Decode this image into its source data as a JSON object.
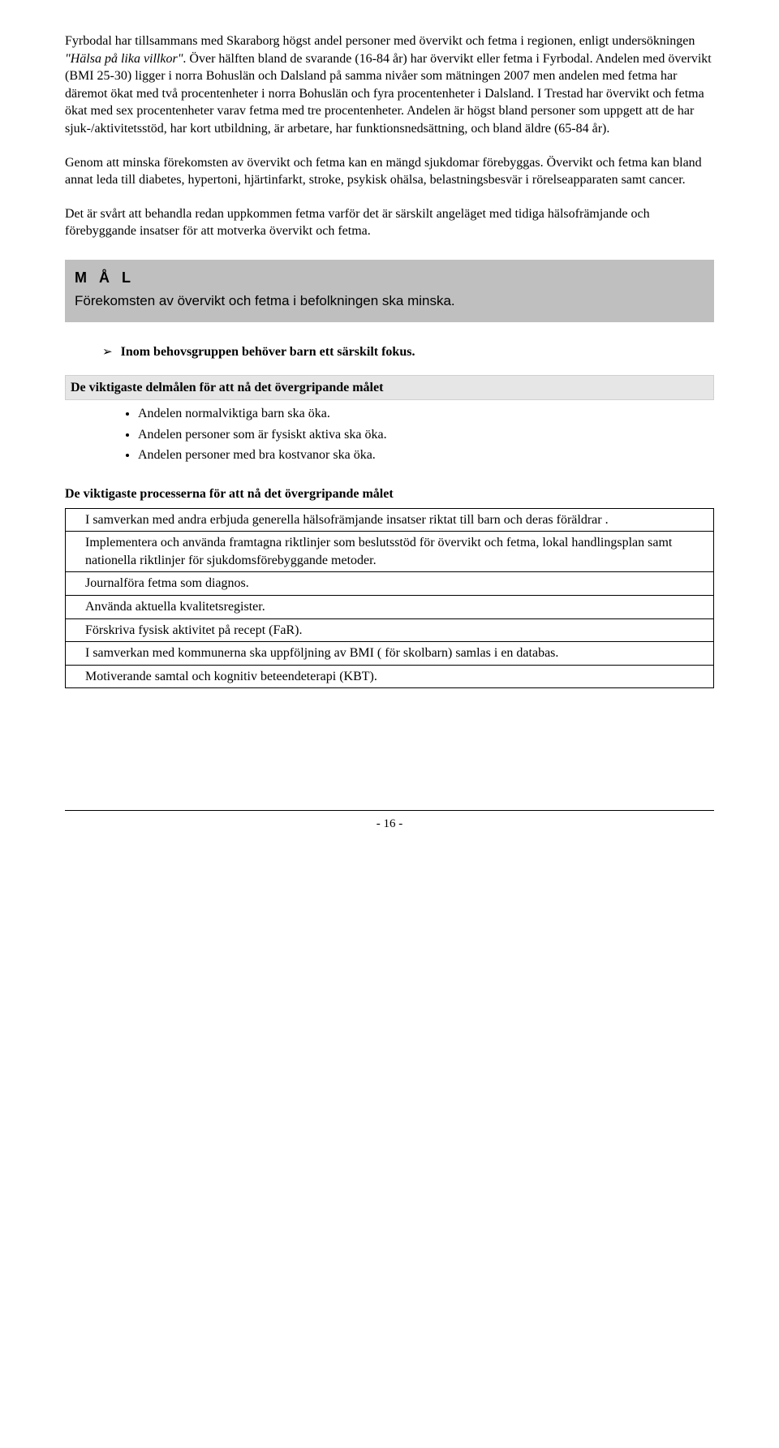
{
  "paragraphs": {
    "p1": "Fyrbodal har tillsammans med Skaraborg högst andel personer med övervikt och fetma i regionen, enligt undersökningen \"Hälsa på lika villkor\". Över hälften bland de svarande (16-84 år) har övervikt eller fetma i Fyrbodal. Andelen med övervikt (BMI 25-30) ligger i norra Bohuslän och Dalsland på samma nivåer som mätningen 2007 men andelen med fetma har däremot ökat med två procentenheter i norra Bohuslän och fyra procentenheter i Dalsland. I Trestad har övervikt och fetma ökat med sex procentenheter varav fetma med tre procentenheter. Andelen är högst bland personer som uppgett att de har sjuk-/aktivitetsstöd, har kort utbildning, är arbetare, har funktionsnedsättning, och bland äldre (65-84 år).",
    "p1_italic": "\"Hälsa på lika villkor\"",
    "p2": "Genom att minska förekomsten av övervikt och fetma kan en mängd sjukdomar förebyggas. Övervikt och fetma kan bland annat leda till diabetes, hypertoni, hjärtinfarkt, stroke, psykisk ohälsa, belastningsbesvär i rörelseapparaten samt cancer.",
    "p3": "Det är svårt att behandla redan uppkommen fetma varför det är särskilt angeläget med tidiga hälsofrämjande och förebyggande insatser för att motverka övervikt och fetma."
  },
  "goal": {
    "label": "M Å L",
    "text": "Förekomsten av övervikt och fetma i befolkningen ska minska."
  },
  "focus": {
    "lead": "I",
    "text": "nom behovsgruppen behöver barn ett särskilt fokus."
  },
  "subgoals": {
    "header": "De viktigaste delmålen för att nå det övergripande målet",
    "items": [
      "Andelen normalviktiga barn ska öka.",
      "Andelen personer som är fysiskt aktiva ska öka.",
      "Andelen personer med bra kostvanor ska öka."
    ]
  },
  "processes": {
    "header": "De viktigaste processerna för att nå det övergripande målet",
    "rows": [
      "I samverkan med andra erbjuda generella hälsofrämjande insatser riktat till barn och deras föräldrar .",
      "Implementera och använda framtagna riktlinjer som beslutsstöd för övervikt och fetma, lokal handlingsplan samt nationella riktlinjer för sjukdomsförebyggande metoder.",
      "Journalföra fetma som diagnos.",
      "Använda aktuella kvalitetsregister.",
      "Förskriva fysisk aktivitet på recept (FaR).",
      "I samverkan med kommunerna ska uppföljning av BMI ( för skolbarn) samlas i en databas.",
      "Motiverande samtal och kognitiv beteendeterapi (KBT)."
    ]
  },
  "footer": {
    "page": "- 16 -"
  }
}
